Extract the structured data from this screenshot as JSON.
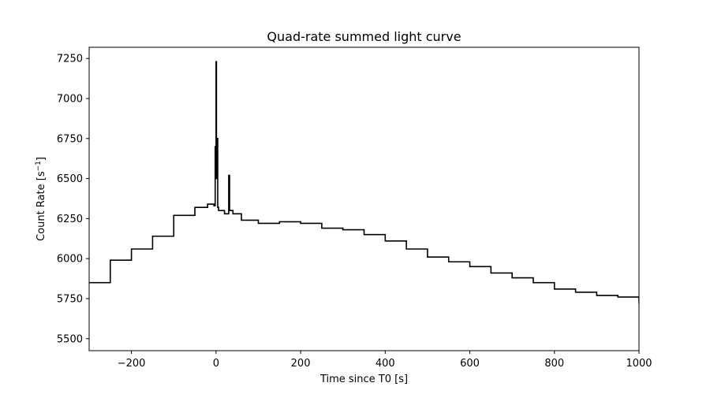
{
  "chart_data": {
    "type": "line",
    "title": "Quad-rate summed light curve",
    "xlabel": "Time since T0 [s]",
    "ylabel": "Count Rate [s",
    "ylabel_sup": "−1",
    "ylabel_close": "]",
    "xlim": [
      -300,
      1000
    ],
    "ylim": [
      5425,
      7320
    ],
    "xticks": [
      -200,
      0,
      200,
      400,
      600,
      800,
      1000
    ],
    "xtick_labels": [
      "−200",
      "0",
      "200",
      "400",
      "600",
      "800",
      "1000"
    ],
    "yticks": [
      5500,
      5750,
      6000,
      6250,
      6500,
      6750,
      7000,
      7250
    ],
    "ytick_labels": [
      "5500",
      "5750",
      "6000",
      "6250",
      "6500",
      "6750",
      "7000",
      "7250"
    ],
    "grid": false,
    "legend": "none",
    "step": "post",
    "series": [
      {
        "color": "#000000",
        "x": [
          -300,
          -250,
          -200,
          -150,
          -100,
          -50,
          -20,
          -5,
          -2,
          0,
          1,
          2,
          4,
          6,
          10,
          20,
          30,
          32,
          40,
          60,
          100,
          150,
          200,
          250,
          300,
          350,
          400,
          450,
          500,
          550,
          600,
          650,
          700,
          750,
          800,
          850,
          900,
          950,
          1000
        ],
        "y": [
          5850,
          5990,
          6060,
          6140,
          6270,
          6320,
          6340,
          6330,
          6700,
          7230,
          6500,
          6750,
          6320,
          6300,
          6300,
          6280,
          6520,
          6300,
          6280,
          6240,
          6220,
          6230,
          6220,
          6190,
          6180,
          6150,
          6110,
          6060,
          6010,
          5980,
          5950,
          5910,
          5880,
          5850,
          5810,
          5790,
          5770,
          5760,
          5720
        ]
      }
    ]
  }
}
